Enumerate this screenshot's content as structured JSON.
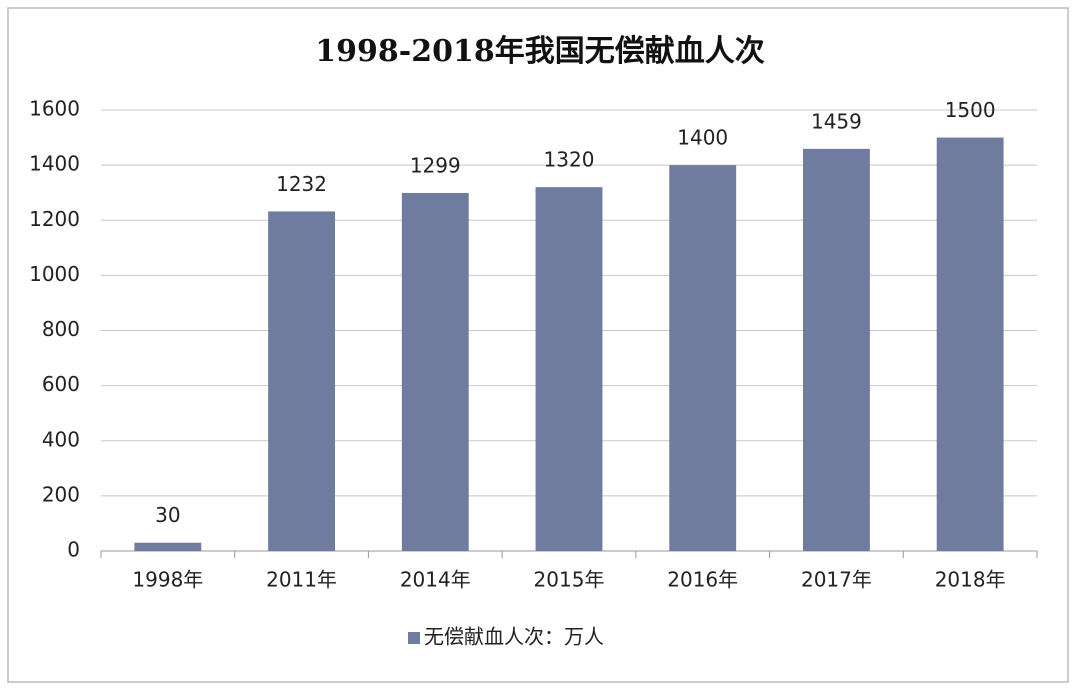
{
  "chart_data": {
    "type": "bar",
    "title": "1998-2018年我国无偿献血人次",
    "categories": [
      "1998年",
      "2011年",
      "2014年",
      "2015年",
      "2016年",
      "2017年",
      "2018年"
    ],
    "series": [
      {
        "name": "无偿献血人次：万人",
        "color": "#6f7b9f",
        "values": [
          30,
          1232,
          1299,
          1320,
          1400,
          1459,
          1500
        ]
      }
    ],
    "ylim": [
      0,
      1600
    ],
    "yticks": [
      0,
      200,
      400,
      600,
      800,
      1000,
      1200,
      1400,
      1600
    ],
    "grid": true,
    "legend": "bottom"
  }
}
